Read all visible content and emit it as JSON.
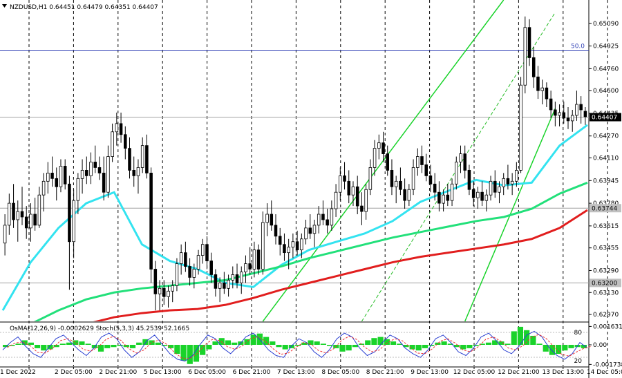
{
  "chart_data": {
    "type": "candlestick",
    "symbol_title": "NZDUSD,H1",
    "ohlc_header": "0.64451 0.64479 0.64351 0.64407",
    "last_price": "0.64407",
    "price_ticks": [
      "0.65090",
      "0.64925",
      "0.64760",
      "0.64600",
      "0.64435",
      "0.64270",
      "0.64110",
      "0.63945",
      "0.63780",
      "0.63615",
      "0.63455",
      "0.63290",
      "0.63130",
      "0.62970"
    ],
    "marked_prices": [
      "0.63744",
      "0.63200"
    ],
    "fib_label": "50.0",
    "fib_level": 0.6489,
    "time_labels": [
      "1 Dec 2022",
      "2 Dec 05:00",
      "2 Dec 21:00",
      "5 Dec 13:00",
      "6 Dec 05:00",
      "6 Dec 21:00",
      "7 Dec 13:00",
      "8 Dec 05:00",
      "8 Dec 21:00",
      "9 Dec 13:00",
      "12 Dec 05:00",
      "12 Dec 21:00",
      "13 Dec 13:00",
      "14 Dec 05:00"
    ],
    "ylim": [
      0.6292,
      0.6526
    ],
    "candles": [
      {
        "o": 0.6349,
        "h": 0.637,
        "l": 0.634,
        "c": 0.6362
      },
      {
        "o": 0.6362,
        "h": 0.6385,
        "l": 0.6355,
        "c": 0.6378
      },
      {
        "o": 0.6378,
        "h": 0.6392,
        "l": 0.636,
        "c": 0.6366
      },
      {
        "o": 0.6366,
        "h": 0.638,
        "l": 0.635,
        "c": 0.6372
      },
      {
        "o": 0.6372,
        "h": 0.639,
        "l": 0.6362,
        "c": 0.6368
      },
      {
        "o": 0.6368,
        "h": 0.6376,
        "l": 0.6352,
        "c": 0.636
      },
      {
        "o": 0.636,
        "h": 0.6378,
        "l": 0.635,
        "c": 0.637
      },
      {
        "o": 0.637,
        "h": 0.6382,
        "l": 0.6358,
        "c": 0.6362
      },
      {
        "o": 0.6362,
        "h": 0.639,
        "l": 0.636,
        "c": 0.6384
      },
      {
        "o": 0.6384,
        "h": 0.64,
        "l": 0.6372,
        "c": 0.6394
      },
      {
        "o": 0.6394,
        "h": 0.6408,
        "l": 0.6385,
        "c": 0.64
      },
      {
        "o": 0.64,
        "h": 0.6412,
        "l": 0.639,
        "c": 0.6396
      },
      {
        "o": 0.6396,
        "h": 0.6404,
        "l": 0.638,
        "c": 0.639
      },
      {
        "o": 0.639,
        "h": 0.641,
        "l": 0.6386,
        "c": 0.6405
      },
      {
        "o": 0.6405,
        "h": 0.641,
        "l": 0.6388,
        "c": 0.6392
      },
      {
        "o": 0.6392,
        "h": 0.6398,
        "l": 0.6315,
        "c": 0.635
      },
      {
        "o": 0.635,
        "h": 0.6388,
        "l": 0.6338,
        "c": 0.638
      },
      {
        "o": 0.638,
        "h": 0.64,
        "l": 0.637,
        "c": 0.6396
      },
      {
        "o": 0.6396,
        "h": 0.641,
        "l": 0.6385,
        "c": 0.6402
      },
      {
        "o": 0.6402,
        "h": 0.6412,
        "l": 0.6392,
        "c": 0.6398
      },
      {
        "o": 0.6398,
        "h": 0.6415,
        "l": 0.6392,
        "c": 0.6408
      },
      {
        "o": 0.6408,
        "h": 0.642,
        "l": 0.64,
        "c": 0.6404
      },
      {
        "o": 0.6404,
        "h": 0.6412,
        "l": 0.6395,
        "c": 0.64
      },
      {
        "o": 0.64,
        "h": 0.6412,
        "l": 0.638,
        "c": 0.6386
      },
      {
        "o": 0.6386,
        "h": 0.642,
        "l": 0.6382,
        "c": 0.6412
      },
      {
        "o": 0.6412,
        "h": 0.6436,
        "l": 0.6408,
        "c": 0.643
      },
      {
        "o": 0.643,
        "h": 0.6444,
        "l": 0.642,
        "c": 0.6436
      },
      {
        "o": 0.6436,
        "h": 0.6444,
        "l": 0.6422,
        "c": 0.6428
      },
      {
        "o": 0.6428,
        "h": 0.6434,
        "l": 0.641,
        "c": 0.6418
      },
      {
        "o": 0.6418,
        "h": 0.6426,
        "l": 0.6396,
        "c": 0.6402
      },
      {
        "o": 0.6402,
        "h": 0.6412,
        "l": 0.639,
        "c": 0.6398
      },
      {
        "o": 0.6398,
        "h": 0.641,
        "l": 0.6385,
        "c": 0.6404
      },
      {
        "o": 0.6404,
        "h": 0.6426,
        "l": 0.64,
        "c": 0.642
      },
      {
        "o": 0.642,
        "h": 0.6428,
        "l": 0.6396,
        "c": 0.64
      },
      {
        "o": 0.64,
        "h": 0.6404,
        "l": 0.632,
        "c": 0.633
      },
      {
        "o": 0.633,
        "h": 0.6336,
        "l": 0.63,
        "c": 0.6312
      },
      {
        "o": 0.6312,
        "h": 0.6322,
        "l": 0.63,
        "c": 0.6316
      },
      {
        "o": 0.6316,
        "h": 0.6322,
        "l": 0.6304,
        "c": 0.631
      },
      {
        "o": 0.631,
        "h": 0.6318,
        "l": 0.6302,
        "c": 0.6314
      },
      {
        "o": 0.6314,
        "h": 0.6322,
        "l": 0.6306,
        "c": 0.6318
      },
      {
        "o": 0.6318,
        "h": 0.6338,
        "l": 0.6314,
        "c": 0.6334
      },
      {
        "o": 0.6334,
        "h": 0.6348,
        "l": 0.6326,
        "c": 0.6342
      },
      {
        "o": 0.6342,
        "h": 0.635,
        "l": 0.6328,
        "c": 0.6332
      },
      {
        "o": 0.6332,
        "h": 0.6338,
        "l": 0.6318,
        "c": 0.6324
      },
      {
        "o": 0.6324,
        "h": 0.6334,
        "l": 0.6316,
        "c": 0.633
      },
      {
        "o": 0.633,
        "h": 0.6344,
        "l": 0.6326,
        "c": 0.634
      },
      {
        "o": 0.634,
        "h": 0.6352,
        "l": 0.6334,
        "c": 0.6348
      },
      {
        "o": 0.6348,
        "h": 0.6354,
        "l": 0.633,
        "c": 0.6336
      },
      {
        "o": 0.6336,
        "h": 0.6342,
        "l": 0.632,
        "c": 0.6326
      },
      {
        "o": 0.6326,
        "h": 0.633,
        "l": 0.631,
        "c": 0.6316
      },
      {
        "o": 0.6316,
        "h": 0.6324,
        "l": 0.6306,
        "c": 0.632
      },
      {
        "o": 0.632,
        "h": 0.6328,
        "l": 0.6312,
        "c": 0.6316
      },
      {
        "o": 0.6316,
        "h": 0.6326,
        "l": 0.631,
        "c": 0.6322
      },
      {
        "o": 0.6322,
        "h": 0.6332,
        "l": 0.6316,
        "c": 0.6326
      },
      {
        "o": 0.6326,
        "h": 0.6334,
        "l": 0.6316,
        "c": 0.632
      },
      {
        "o": 0.632,
        "h": 0.6332,
        "l": 0.6312,
        "c": 0.6328
      },
      {
        "o": 0.6328,
        "h": 0.634,
        "l": 0.632,
        "c": 0.6334
      },
      {
        "o": 0.6334,
        "h": 0.6346,
        "l": 0.6326,
        "c": 0.633
      },
      {
        "o": 0.633,
        "h": 0.635,
        "l": 0.6324,
        "c": 0.6344
      },
      {
        "o": 0.6344,
        "h": 0.6348,
        "l": 0.6326,
        "c": 0.633
      },
      {
        "o": 0.633,
        "h": 0.6372,
        "l": 0.6326,
        "c": 0.6364
      },
      {
        "o": 0.6364,
        "h": 0.6378,
        "l": 0.6354,
        "c": 0.637
      },
      {
        "o": 0.637,
        "h": 0.638,
        "l": 0.6358,
        "c": 0.6362
      },
      {
        "o": 0.6362,
        "h": 0.637,
        "l": 0.6348,
        "c": 0.6354
      },
      {
        "o": 0.6354,
        "h": 0.636,
        "l": 0.634,
        "c": 0.6348
      },
      {
        "o": 0.6348,
        "h": 0.6356,
        "l": 0.6336,
        "c": 0.6342
      },
      {
        "o": 0.6342,
        "h": 0.6352,
        "l": 0.633,
        "c": 0.6346
      },
      {
        "o": 0.6346,
        "h": 0.6356,
        "l": 0.6338,
        "c": 0.635
      },
      {
        "o": 0.635,
        "h": 0.6358,
        "l": 0.634,
        "c": 0.6344
      },
      {
        "o": 0.6344,
        "h": 0.6356,
        "l": 0.6338,
        "c": 0.6352
      },
      {
        "o": 0.6352,
        "h": 0.6366,
        "l": 0.6348,
        "c": 0.636
      },
      {
        "o": 0.636,
        "h": 0.637,
        "l": 0.6352,
        "c": 0.6356
      },
      {
        "o": 0.6356,
        "h": 0.6366,
        "l": 0.6346,
        "c": 0.6362
      },
      {
        "o": 0.6362,
        "h": 0.6376,
        "l": 0.6356,
        "c": 0.637
      },
      {
        "o": 0.637,
        "h": 0.638,
        "l": 0.6362,
        "c": 0.6366
      },
      {
        "o": 0.6366,
        "h": 0.6374,
        "l": 0.6356,
        "c": 0.6362
      },
      {
        "o": 0.6362,
        "h": 0.638,
        "l": 0.6358,
        "c": 0.6374
      },
      {
        "o": 0.6374,
        "h": 0.6392,
        "l": 0.6368,
        "c": 0.6386
      },
      {
        "o": 0.6386,
        "h": 0.6404,
        "l": 0.638,
        "c": 0.6398
      },
      {
        "o": 0.6398,
        "h": 0.6408,
        "l": 0.6388,
        "c": 0.6394
      },
      {
        "o": 0.6394,
        "h": 0.6402,
        "l": 0.6378,
        "c": 0.6384
      },
      {
        "o": 0.6384,
        "h": 0.6394,
        "l": 0.6376,
        "c": 0.639
      },
      {
        "o": 0.639,
        "h": 0.6398,
        "l": 0.637,
        "c": 0.6376
      },
      {
        "o": 0.6376,
        "h": 0.6386,
        "l": 0.6362,
        "c": 0.6372
      },
      {
        "o": 0.6372,
        "h": 0.6392,
        "l": 0.6366,
        "c": 0.6388
      },
      {
        "o": 0.6388,
        "h": 0.641,
        "l": 0.6384,
        "c": 0.6404
      },
      {
        "o": 0.6404,
        "h": 0.6424,
        "l": 0.6398,
        "c": 0.6418
      },
      {
        "o": 0.6418,
        "h": 0.6428,
        "l": 0.641,
        "c": 0.6422
      },
      {
        "o": 0.6422,
        "h": 0.643,
        "l": 0.6408,
        "c": 0.6414
      },
      {
        "o": 0.6414,
        "h": 0.642,
        "l": 0.6398,
        "c": 0.6402
      },
      {
        "o": 0.6402,
        "h": 0.641,
        "l": 0.6384,
        "c": 0.639
      },
      {
        "o": 0.639,
        "h": 0.6398,
        "l": 0.6378,
        "c": 0.6394
      },
      {
        "o": 0.6394,
        "h": 0.6404,
        "l": 0.6384,
        "c": 0.6388
      },
      {
        "o": 0.6388,
        "h": 0.6396,
        "l": 0.6374,
        "c": 0.638
      },
      {
        "o": 0.638,
        "h": 0.6392,
        "l": 0.6376,
        "c": 0.6388
      },
      {
        "o": 0.6388,
        "h": 0.641,
        "l": 0.6384,
        "c": 0.6404
      },
      {
        "o": 0.6404,
        "h": 0.6418,
        "l": 0.6398,
        "c": 0.6412
      },
      {
        "o": 0.6412,
        "h": 0.642,
        "l": 0.64,
        "c": 0.6406
      },
      {
        "o": 0.6406,
        "h": 0.6414,
        "l": 0.6394,
        "c": 0.6398
      },
      {
        "o": 0.6398,
        "h": 0.6406,
        "l": 0.6386,
        "c": 0.6392
      },
      {
        "o": 0.6392,
        "h": 0.64,
        "l": 0.638,
        "c": 0.6386
      },
      {
        "o": 0.6386,
        "h": 0.6394,
        "l": 0.6372,
        "c": 0.6378
      },
      {
        "o": 0.6378,
        "h": 0.6388,
        "l": 0.6372,
        "c": 0.6384
      },
      {
        "o": 0.6384,
        "h": 0.6392,
        "l": 0.6376,
        "c": 0.638
      },
      {
        "o": 0.638,
        "h": 0.6396,
        "l": 0.6376,
        "c": 0.6392
      },
      {
        "o": 0.6392,
        "h": 0.6412,
        "l": 0.6388,
        "c": 0.6408
      },
      {
        "o": 0.6408,
        "h": 0.642,
        "l": 0.64,
        "c": 0.6414
      },
      {
        "o": 0.6414,
        "h": 0.642,
        "l": 0.6396,
        "c": 0.6402
      },
      {
        "o": 0.6402,
        "h": 0.6406,
        "l": 0.6384,
        "c": 0.6388
      },
      {
        "o": 0.6388,
        "h": 0.6394,
        "l": 0.6376,
        "c": 0.6382
      },
      {
        "o": 0.6382,
        "h": 0.639,
        "l": 0.6374,
        "c": 0.6386
      },
      {
        "o": 0.6386,
        "h": 0.6394,
        "l": 0.6376,
        "c": 0.638
      },
      {
        "o": 0.638,
        "h": 0.6388,
        "l": 0.6372,
        "c": 0.6384
      },
      {
        "o": 0.6384,
        "h": 0.6398,
        "l": 0.638,
        "c": 0.6394
      },
      {
        "o": 0.6394,
        "h": 0.6402,
        "l": 0.6382,
        "c": 0.6386
      },
      {
        "o": 0.6386,
        "h": 0.6394,
        "l": 0.6378,
        "c": 0.639
      },
      {
        "o": 0.639,
        "h": 0.64,
        "l": 0.6384,
        "c": 0.6396
      },
      {
        "o": 0.6396,
        "h": 0.6406,
        "l": 0.6388,
        "c": 0.6392
      },
      {
        "o": 0.6392,
        "h": 0.64,
        "l": 0.6384,
        "c": 0.6394
      },
      {
        "o": 0.6394,
        "h": 0.6408,
        "l": 0.639,
        "c": 0.6402
      },
      {
        "o": 0.6402,
        "h": 0.647,
        "l": 0.64,
        "c": 0.6464
      },
      {
        "o": 0.6464,
        "h": 0.6514,
        "l": 0.6458,
        "c": 0.6506
      },
      {
        "o": 0.6506,
        "h": 0.6512,
        "l": 0.6478,
        "c": 0.6484
      },
      {
        "o": 0.6484,
        "h": 0.6492,
        "l": 0.6462,
        "c": 0.647
      },
      {
        "o": 0.647,
        "h": 0.6478,
        "l": 0.6454,
        "c": 0.646
      },
      {
        "o": 0.646,
        "h": 0.6468,
        "l": 0.645,
        "c": 0.6462
      },
      {
        "o": 0.6462,
        "h": 0.6466,
        "l": 0.6448,
        "c": 0.6454
      },
      {
        "o": 0.6454,
        "h": 0.646,
        "l": 0.644,
        "c": 0.6446
      },
      {
        "o": 0.6446,
        "h": 0.6452,
        "l": 0.6434,
        "c": 0.6442
      },
      {
        "o": 0.6442,
        "h": 0.645,
        "l": 0.6434,
        "c": 0.6444
      },
      {
        "o": 0.6444,
        "h": 0.6452,
        "l": 0.6436,
        "c": 0.644
      },
      {
        "o": 0.644,
        "h": 0.6448,
        "l": 0.6432,
        "c": 0.6438
      },
      {
        "o": 0.6438,
        "h": 0.6446,
        "l": 0.643,
        "c": 0.6442
      },
      {
        "o": 0.6442,
        "h": 0.646,
        "l": 0.6438,
        "c": 0.645
      },
      {
        "o": 0.645,
        "h": 0.6456,
        "l": 0.6436,
        "c": 0.6446
      },
      {
        "o": 0.6445,
        "h": 0.6448,
        "l": 0.6435,
        "c": 0.6441
      }
    ],
    "moving_averages": [
      {
        "color": "#33e3f0",
        "values": [
          0.63,
          0.6335,
          0.636,
          0.6378,
          0.6386,
          0.6348,
          0.6336,
          0.633,
          0.632,
          0.6317,
          0.6333,
          0.6344,
          0.635,
          0.6356,
          0.6365,
          0.6379,
          0.6387,
          0.6395,
          0.6391,
          0.6393,
          0.642,
          0.6435
        ]
      },
      {
        "color": "#22e07a",
        "values": [
          0.627,
          0.629,
          0.63,
          0.6308,
          0.6313,
          0.6316,
          0.6318,
          0.632,
          0.6322,
          0.6327,
          0.6332,
          0.6338,
          0.6343,
          0.6348,
          0.6353,
          0.6357,
          0.6361,
          0.6365,
          0.6368,
          0.6374,
          0.6385,
          0.6393
        ]
      },
      {
        "color": "#e11e1e",
        "values": [
          0.626,
          0.6272,
          0.6282,
          0.629,
          0.6295,
          0.6298,
          0.63,
          0.6301,
          0.6304,
          0.6309,
          0.6315,
          0.632,
          0.6325,
          0.633,
          0.6335,
          0.6339,
          0.6342,
          0.6345,
          0.6348,
          0.6352,
          0.636,
          0.6373
        ]
      }
    ],
    "channels": [
      {
        "color": "#19d32a",
        "style": "solid",
        "points": [
          [
            60,
            0.6292
          ],
          [
            116,
            0.6526
          ]
        ]
      },
      {
        "color": "#19d32a",
        "style": "solid",
        "points": [
          [
            107,
            0.6292
          ],
          [
            128,
            0.6447
          ]
        ]
      },
      {
        "color": "#22bb22",
        "style": "dashed",
        "points": [
          [
            83,
            0.6292
          ],
          [
            128,
            0.6517
          ]
        ]
      }
    ],
    "oscillator": {
      "header": "OsMA(12,26,9) -0.0002629  Stoch(5,3,3) 45.2539 52.1665",
      "ticks": [
        "0.001631",
        "0.00",
        "-0.001738"
      ],
      "levels": [
        "80",
        "20"
      ],
      "range": [
        -0.0019,
        0.0019
      ],
      "histogram": [
        -0.0002,
        -0.0001,
        0.0001,
        0.0004,
        0.0002,
        -0.0003,
        -0.0005,
        -0.0004,
        -0.0002,
        0.0001,
        0.0002,
        0.0004,
        0.0003,
        0.0001,
        -0.0003,
        -0.0006,
        -0.0003,
        -0.0002,
        -0.0001,
        -0.0002,
        -0.0003,
        0.0002,
        0.0005,
        0.0004,
        0.0002,
        -0.0001,
        -0.0003,
        -0.0008,
        -0.0014,
        -0.0017,
        -0.0015,
        -0.0009,
        -0.0004,
        0.0003,
        0.0006,
        0.0004,
        0.0002,
        0.0003,
        0.0005,
        0.0009,
        0.001,
        0.0007,
        0.0003,
        -0.0002,
        -0.0004,
        -0.0003,
        -0.0001,
        0.0002,
        0.0004,
        0.0003,
        0.0001,
        -0.0001,
        -0.0003,
        -0.0006,
        -0.0005,
        -0.0002,
        0.0001,
        0.0004,
        0.0006,
        0.0007,
        0.0005,
        0.0003,
        0.0001,
        -0.0002,
        -0.0004,
        -0.0005,
        -0.0003,
        -0.0001,
        0.0002,
        0.0003,
        0.0001,
        -0.0002,
        -0.0004,
        -0.0003,
        -0.0001,
        0.0001,
        0.0002,
        0.0004,
        0.0003,
        0.0001,
        0.0012,
        0.0016,
        0.0013,
        0.0008,
        0.0001,
        -0.0006,
        -0.0009,
        -0.0008,
        -0.0005,
        -0.0003,
        -0.0002,
        -0.0003
      ],
      "stoch_main": [
        40,
        60,
        75,
        50,
        30,
        20,
        45,
        70,
        80,
        60,
        40,
        25,
        45,
        75,
        85,
        70,
        40,
        20,
        35,
        65,
        80,
        55,
        30,
        15,
        10,
        25,
        55,
        80,
        70,
        45,
        30,
        50,
        75,
        85,
        65,
        40,
        25,
        20,
        50,
        70,
        60,
        35,
        20,
        40,
        70,
        85,
        75,
        45,
        25,
        35,
        60,
        80,
        70,
        45,
        30,
        20,
        40,
        70,
        80,
        60,
        35,
        25,
        45,
        75,
        85,
        65,
        40,
        30,
        50,
        80,
        90,
        75,
        45,
        25,
        15,
        30,
        60,
        45
      ]
    }
  }
}
